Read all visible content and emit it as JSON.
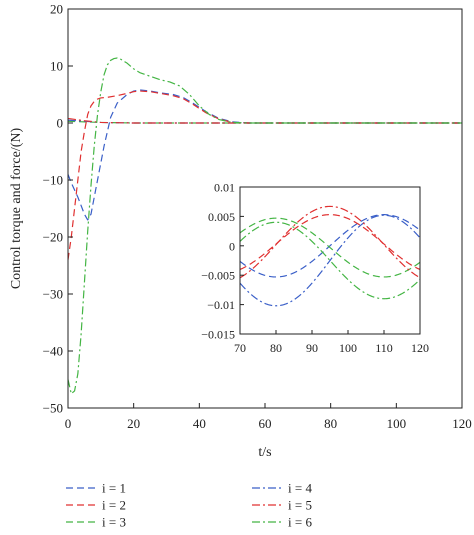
{
  "chart_data": [
    {
      "type": "line",
      "title": "",
      "xlabel": "t/s",
      "ylabel": "Control torque and force/(N)",
      "xlim": [
        0,
        120
      ],
      "ylim": [
        -50,
        20
      ],
      "xticks": [
        0,
        20,
        40,
        60,
        80,
        100,
        120
      ],
      "yticks": [
        -50,
        -40,
        -30,
        -20,
        -10,
        0,
        10,
        20
      ],
      "xtick_labels": [
        "0",
        "20",
        "40",
        "60",
        "80",
        "100",
        "120"
      ],
      "ytick_labels": [
        "−50",
        "−40",
        "−30",
        "−20",
        "−10",
        "0",
        "10",
        "20"
      ],
      "grid": false,
      "legend": "below",
      "series": [
        {
          "name": "i = 1",
          "color": "#3a5fc8",
          "dash": "dashed",
          "x": [
            0,
            1,
            3,
            5,
            6,
            7,
            9,
            11,
            13,
            15,
            18,
            20,
            22,
            25,
            28,
            32,
            35,
            38,
            42,
            46,
            50,
            55,
            60,
            120
          ],
          "y": [
            -9,
            -10.5,
            -13,
            -16,
            -17,
            -16,
            -10,
            -4,
            1,
            3.5,
            5,
            5.6,
            5.8,
            5.6,
            5.3,
            5,
            4.5,
            3.5,
            2,
            0.8,
            0.2,
            0,
            0,
            0
          ]
        },
        {
          "name": "i = 2",
          "color": "#e03030",
          "dash": "dashed",
          "x": [
            0,
            1,
            2,
            3,
            4,
            5,
            6,
            7,
            8,
            9,
            10,
            12,
            15,
            18,
            20,
            22,
            25,
            28,
            32,
            35,
            38,
            42,
            46,
            50,
            55,
            60,
            120
          ],
          "y": [
            -24,
            -20,
            -15,
            -10,
            -5,
            -1.5,
            1.5,
            3,
            3.8,
            4.2,
            4.4,
            4.5,
            4.8,
            5.2,
            5.5,
            5.6,
            5.5,
            5.2,
            4.8,
            4.3,
            3.3,
            1.8,
            0.7,
            0.1,
            0,
            0,
            0
          ]
        },
        {
          "name": "i = 3",
          "color": "#44b544",
          "dash": "dashed",
          "x": [
            0,
            5,
            10,
            20,
            40,
            60,
            80,
            100,
            120
          ],
          "y": [
            0.3,
            0.2,
            0.1,
            0,
            0,
            0,
            0,
            0,
            0
          ]
        },
        {
          "name": "i = 4",
          "color": "#3a5fc8",
          "dash": "dashdot",
          "x": [
            0,
            5,
            10,
            20,
            40,
            60,
            80,
            100,
            120
          ],
          "y": [
            0.5,
            0.3,
            0.1,
            0,
            0,
            0,
            0,
            0,
            0
          ]
        },
        {
          "name": "i = 5",
          "color": "#e03030",
          "dash": "dashdot",
          "x": [
            0,
            5,
            10,
            20,
            40,
            60,
            80,
            100,
            120
          ],
          "y": [
            0.8,
            0.4,
            0.1,
            0,
            0,
            0,
            0,
            0,
            0
          ]
        },
        {
          "name": "i = 6",
          "color": "#44b544",
          "dash": "dashdot",
          "x": [
            0,
            1,
            2,
            3,
            4,
            5,
            6,
            7,
            8,
            9,
            10,
            11,
            12,
            13,
            14,
            15,
            16,
            18,
            20,
            22,
            25,
            28,
            31,
            34,
            37,
            40,
            43,
            46,
            50,
            55,
            60,
            120
          ],
          "y": [
            -45,
            -47.5,
            -47,
            -44,
            -37,
            -28,
            -19,
            -11,
            -4,
            1.5,
            5.5,
            8.5,
            10.2,
            11,
            11.3,
            11.4,
            11.2,
            10.5,
            9.5,
            8.8,
            8.2,
            7.6,
            7.2,
            6.5,
            5,
            3,
            1.5,
            0.6,
            0.1,
            0,
            0,
            0
          ]
        }
      ]
    },
    {
      "type": "line",
      "title": "",
      "xlabel": "",
      "ylabel": "",
      "xlim": [
        70,
        120
      ],
      "ylim": [
        -0.015,
        0.01
      ],
      "xticks": [
        70,
        80,
        90,
        100,
        110,
        120
      ],
      "yticks": [
        -0.015,
        -0.01,
        -0.005,
        0,
        0.005,
        0.01
      ],
      "xtick_labels": [
        "70",
        "80",
        "90",
        "100",
        "110",
        "120"
      ],
      "ytick_labels": [
        "−0.015",
        "−0.01",
        "−0.005",
        "0",
        "0.005",
        "0.01"
      ],
      "grid": false,
      "series": [
        {
          "name": "i = 1",
          "color": "#3a5fc8",
          "dash": "dashed",
          "center": 0,
          "amp": 0.0053,
          "period": 60,
          "phase_x": 110
        },
        {
          "name": "i = 2",
          "color": "#e03030",
          "dash": "dashed",
          "center": 0.0003,
          "amp": 0.005,
          "period": 60,
          "phase_x": 95
        },
        {
          "name": "i = 3",
          "color": "#44b544",
          "dash": "dashed",
          "center": -0.0003,
          "amp": 0.005,
          "period": 60,
          "phase_x": 80
        },
        {
          "name": "i = 4",
          "color": "#3a5fc8",
          "dash": "dashdot",
          "center": -0.0025,
          "amp": 0.0077,
          "period": 60,
          "phase_x": 110
        },
        {
          "name": "i = 5",
          "color": "#e03030",
          "dash": "dashdot",
          "center": 0.0002,
          "amp": 0.0065,
          "period": 60,
          "phase_x": 95
        },
        {
          "name": "i = 6",
          "color": "#44b544",
          "dash": "dashdot",
          "center": -0.0025,
          "amp": 0.0065,
          "period": 60,
          "phase_x": 80
        }
      ]
    }
  ]
}
